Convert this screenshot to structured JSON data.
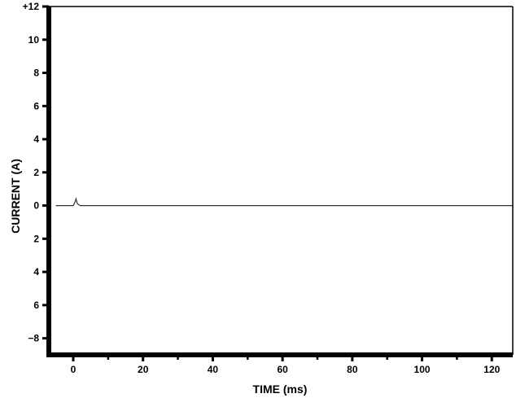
{
  "chart_data": {
    "type": "line",
    "title": "",
    "xlabel": "TIME (ms)",
    "ylabel": "CURRENT (A)",
    "xlim": [
      -7,
      126
    ],
    "ylim": [
      -9,
      12
    ],
    "x_ticks": [
      {
        "value": 0,
        "label": "0"
      },
      {
        "value": 20,
        "label": "20"
      },
      {
        "value": 40,
        "label": "40"
      },
      {
        "value": 60,
        "label": "60"
      },
      {
        "value": 80,
        "label": "80"
      },
      {
        "value": 100,
        "label": "100"
      },
      {
        "value": 120,
        "label": "120"
      }
    ],
    "y_ticks": [
      {
        "value": 12,
        "label": "+12"
      },
      {
        "value": 10,
        "label": "10"
      },
      {
        "value": 8,
        "label": "8"
      },
      {
        "value": 6,
        "label": "6"
      },
      {
        "value": 4,
        "label": "4"
      },
      {
        "value": 2,
        "label": "2"
      },
      {
        "value": 0,
        "label": "0"
      },
      {
        "value": -2,
        "label": "2"
      },
      {
        "value": -4,
        "label": "4"
      },
      {
        "value": -6,
        "label": "6"
      },
      {
        "value": -8,
        "label": "−8"
      }
    ],
    "grid": false,
    "series": [
      {
        "color": "#333333",
        "x": [
          -5,
          0,
          0.5,
          0.8,
          1.2,
          2,
          3,
          126
        ],
        "y": [
          0,
          0,
          0.2,
          0.4,
          0.1,
          0,
          0,
          0
        ]
      }
    ]
  }
}
